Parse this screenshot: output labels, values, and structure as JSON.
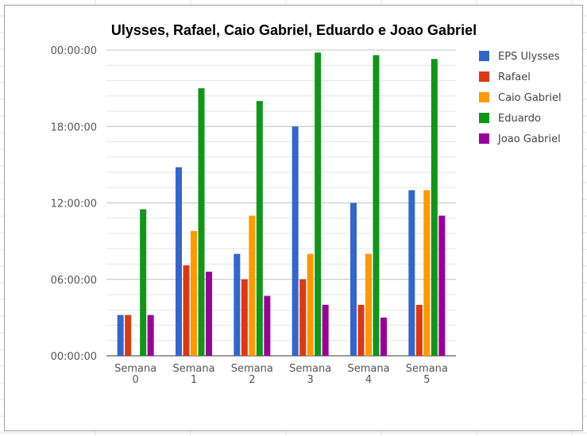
{
  "chart_data": {
    "type": "bar",
    "title": "Ulysses, Rafael, Caio Gabriel, Eduardo e Joao Gabriel",
    "xlabel": "",
    "ylabel": "",
    "categories": [
      [
        "Semana",
        "0"
      ],
      [
        "Semana",
        "1"
      ],
      [
        "Semana",
        "2"
      ],
      [
        "Semana",
        "3"
      ],
      [
        "Semana",
        "4"
      ],
      [
        "Semana",
        "5"
      ]
    ],
    "y_unit": "hours",
    "ylim": [
      0,
      24
    ],
    "y_ticks": [
      {
        "value": 0,
        "label": "00:00:00"
      },
      {
        "value": 6,
        "label": "06:00:00"
      },
      {
        "value": 12,
        "label": "12:00:00"
      },
      {
        "value": 18,
        "label": "18:00:00"
      },
      {
        "value": 24,
        "label": "00:00:00"
      }
    ],
    "minor_grid_step": 1.2,
    "grid": true,
    "legend_position": "right",
    "series": [
      {
        "name": "EPS Ulysses",
        "color": "#3366cc",
        "values": [
          3.2,
          14.8,
          8.0,
          18.0,
          12.0,
          13.0
        ]
      },
      {
        "name": "Rafael",
        "color": "#dc3912",
        "values": [
          3.2,
          7.1,
          6.0,
          6.0,
          4.0,
          4.0
        ]
      },
      {
        "name": "Caio Gabriel",
        "color": "#ff9900",
        "values": [
          0,
          9.8,
          11.0,
          8.0,
          8.0,
          13.0
        ]
      },
      {
        "name": "Eduardo",
        "color": "#109618",
        "values": [
          11.5,
          21.0,
          20.0,
          23.8,
          23.6,
          23.3
        ]
      },
      {
        "name": "Joao Gabriel",
        "color": "#990099",
        "values": [
          3.2,
          6.6,
          4.7,
          4.0,
          3.0,
          11.0
        ]
      }
    ]
  }
}
